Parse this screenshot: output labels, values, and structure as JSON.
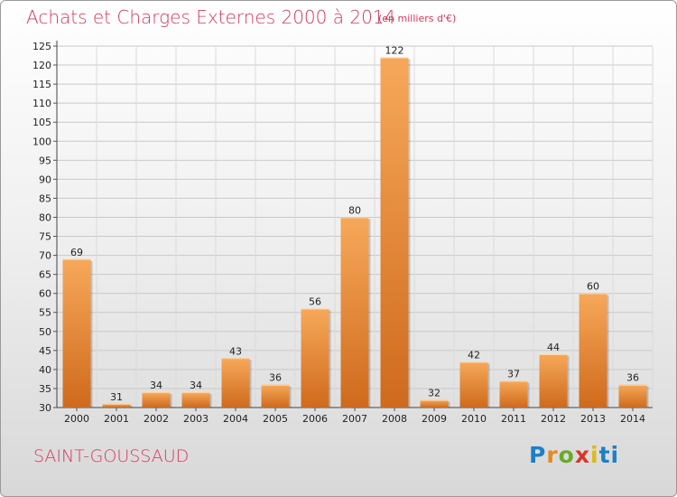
{
  "title": "Achats et Charges Externes 2000 à 2014",
  "subtitle": "(en milliers d'€)",
  "commune": "SAINT-GOUSSAUD",
  "brand": [
    "P",
    "r",
    "o",
    "x",
    "i",
    "ti"
  ],
  "colors": {
    "bar_top": "#f7a85a",
    "bar_bottom": "#cf6a1c",
    "title": "#d23a5c"
  },
  "chart_data": {
    "type": "bar",
    "title": "Achats et Charges Externes 2000 à 2014",
    "xlabel": "",
    "ylabel": "",
    "categories": [
      "2000",
      "2001",
      "2002",
      "2003",
      "2004",
      "2005",
      "2006",
      "2007",
      "2008",
      "2009",
      "2010",
      "2011",
      "2012",
      "2013",
      "2014"
    ],
    "values": [
      69,
      31,
      34,
      34,
      43,
      36,
      56,
      80,
      122,
      32,
      42,
      37,
      44,
      60,
      36
    ],
    "ylim": [
      30,
      125
    ],
    "yticks": [
      30,
      35,
      40,
      45,
      50,
      55,
      60,
      65,
      70,
      75,
      80,
      85,
      90,
      95,
      100,
      105,
      110,
      115,
      120,
      125
    ],
    "grid": true
  }
}
